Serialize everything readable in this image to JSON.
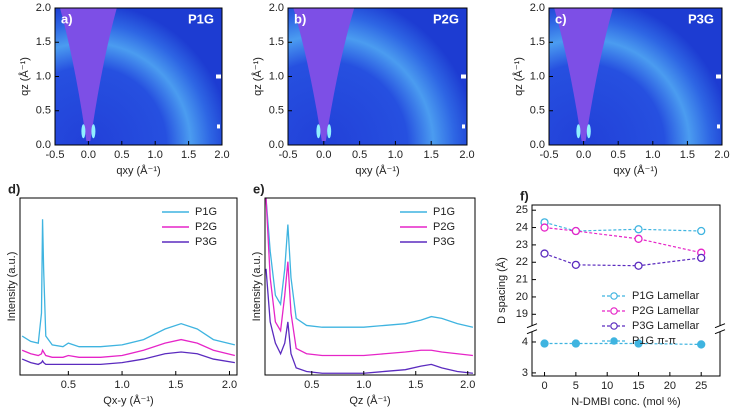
{
  "chart_data": [
    {
      "type": "image",
      "panel_label": "a)",
      "sample": "P1G",
      "xlabel": "qxy (Å⁻¹)",
      "ylabel": "qz (Å⁻¹)",
      "xlim": [
        -0.5,
        2.0
      ],
      "ylim": [
        0,
        2.0
      ],
      "xticks": [
        {
          "value": -0.5,
          "label": "-0.5"
        },
        {
          "value": 0,
          "label": "0.0"
        },
        {
          "value": 0.5,
          "label": "0.5"
        },
        {
          "value": 1,
          "label": "1.0"
        },
        {
          "value": 1.5,
          "label": "1.5"
        },
        {
          "value": 2,
          "label": "2.0"
        }
      ],
      "yticks": [
        {
          "value": 0,
          "label": "0.0"
        },
        {
          "value": 0.5,
          "label": "0.5"
        },
        {
          "value": 1,
          "label": "1.0"
        },
        {
          "value": 1.5,
          "label": "1.5"
        },
        {
          "value": 2,
          "label": "2.0"
        }
      ]
    },
    {
      "type": "image",
      "panel_label": "b)",
      "sample": "P2G",
      "xlabel": "qxy (Å⁻¹)",
      "ylabel": "qz (Å⁻¹)",
      "xlim": [
        -0.5,
        2.0
      ],
      "ylim": [
        0,
        2.0
      ],
      "xticks": [
        {
          "value": -0.5,
          "label": "-0.5"
        },
        {
          "value": 0,
          "label": "0.0"
        },
        {
          "value": 0.5,
          "label": "0.5"
        },
        {
          "value": 1,
          "label": "1.0"
        },
        {
          "value": 1.5,
          "label": "1.5"
        },
        {
          "value": 2,
          "label": "2.0"
        }
      ],
      "yticks": [
        {
          "value": 0,
          "label": "0.0"
        },
        {
          "value": 0.5,
          "label": "0.5"
        },
        {
          "value": 1,
          "label": "1.0"
        },
        {
          "value": 1.5,
          "label": "1.5"
        },
        {
          "value": 2,
          "label": "2.0"
        }
      ]
    },
    {
      "type": "image",
      "panel_label": "c)",
      "sample": "P3G",
      "xlabel": "qxy (Å⁻¹)",
      "ylabel": "qz (Å⁻¹)",
      "xlim": [
        -0.5,
        2.0
      ],
      "ylim": [
        0,
        2.0
      ],
      "xticks": [
        {
          "value": -0.5,
          "label": "-0.5"
        },
        {
          "value": 0,
          "label": "0.0"
        },
        {
          "value": 0.5,
          "label": "0.5"
        },
        {
          "value": 1,
          "label": "1.0"
        },
        {
          "value": 1.5,
          "label": "1.5"
        },
        {
          "value": 2,
          "label": "2.0"
        }
      ],
      "yticks": [
        {
          "value": 0,
          "label": "0.0"
        },
        {
          "value": 0.5,
          "label": "0.5"
        },
        {
          "value": 1,
          "label": "1.0"
        },
        {
          "value": 1.5,
          "label": "1.5"
        },
        {
          "value": 2,
          "label": "2.0"
        }
      ]
    },
    {
      "type": "line",
      "panel_label": "d)",
      "xlabel": "Qx-y (Å⁻¹)",
      "ylabel": "Intensity (a.u.)",
      "x": [
        0.07,
        0.15,
        0.22,
        0.25,
        0.26,
        0.27,
        0.29,
        0.35,
        0.45,
        0.5,
        0.6,
        0.8,
        1.0,
        1.2,
        1.4,
        1.55,
        1.7,
        1.85,
        2.05
      ],
      "series": [
        {
          "name": "P1G",
          "color": "#3fb4e0",
          "values": [
            22,
            19,
            18,
            35,
            88,
            60,
            22,
            17,
            16,
            18,
            16,
            16,
            17,
            20,
            26,
            29,
            26,
            20,
            17
          ]
        },
        {
          "name": "P2G",
          "color": "#e625c8",
          "values": [
            14,
            12,
            11,
            12,
            14,
            13,
            11,
            10,
            10,
            11,
            10,
            10,
            11,
            14,
            18,
            20,
            18,
            14,
            11
          ]
        },
        {
          "name": "P3G",
          "color": "#5b2bbf",
          "values": [
            9,
            7,
            6,
            7,
            8,
            7,
            6,
            6,
            6,
            6,
            6,
            6,
            7,
            9,
            12,
            13,
            12,
            9,
            7
          ]
        }
      ],
      "xlim": [
        0.05,
        2.07
      ],
      "ylim": [
        0,
        100
      ],
      "xticks": [
        {
          "value": 0.5,
          "label": "0.5"
        },
        {
          "value": 1,
          "label": "1.0"
        },
        {
          "value": 1.5,
          "label": "1.5"
        },
        {
          "value": 2,
          "label": "2.0"
        }
      ],
      "legend": "upper right"
    },
    {
      "type": "line",
      "panel_label": "e)",
      "xlabel": "Qz (Å⁻¹)",
      "ylabel": "Intensity (a.u.)",
      "x": [
        0.06,
        0.1,
        0.15,
        0.2,
        0.24,
        0.27,
        0.3,
        0.35,
        0.45,
        0.6,
        0.8,
        1.0,
        1.2,
        1.4,
        1.55,
        1.65,
        1.75,
        1.9,
        2.05
      ],
      "series": [
        {
          "name": "P1G",
          "color": "#3fb4e0",
          "values": [
            100,
            70,
            45,
            40,
            60,
            85,
            55,
            32,
            28,
            27,
            27,
            27,
            28,
            29,
            31,
            33,
            32,
            29,
            27
          ]
        },
        {
          "name": "P2G",
          "color": "#e625c8",
          "values": [
            100,
            55,
            30,
            25,
            45,
            64,
            35,
            15,
            12,
            11,
            11,
            11,
            12,
            13,
            14,
            14,
            13,
            12,
            11
          ]
        },
        {
          "name": "P3G",
          "color": "#5b2bbf",
          "values": [
            60,
            30,
            18,
            12,
            18,
            30,
            12,
            4,
            2,
            1,
            1,
            1,
            2,
            3,
            5,
            6,
            4,
            2,
            1
          ]
        }
      ],
      "xlim": [
        0.05,
        2.07
      ],
      "ylim": [
        0,
        100
      ],
      "xticks": [
        {
          "value": 0.5,
          "label": "0.5"
        },
        {
          "value": 1,
          "label": "1.0"
        },
        {
          "value": 1.5,
          "label": "1.5"
        },
        {
          "value": 2,
          "label": "2.0"
        }
      ],
      "legend": "upper right"
    },
    {
      "type": "scatter-line",
      "panel_label": "f)",
      "xlabel": "N-DMBI conc. (mol %)",
      "ylabel": "D spacing (Å)",
      "x": [
        0,
        5,
        15,
        25
      ],
      "series": [
        {
          "name": "P1G Lamellar",
          "color": "#3fb4e0",
          "marker": "open-circle",
          "values": [
            24.3,
            23.8,
            23.9,
            23.8
          ]
        },
        {
          "name": "P2G Lamellar",
          "color": "#e625c8",
          "marker": "open-circle",
          "values": [
            24.0,
            23.8,
            23.35,
            22.55
          ]
        },
        {
          "name": "P3G Lamellar",
          "color": "#5b2bbf",
          "marker": "open-circle",
          "values": [
            22.5,
            21.85,
            21.8,
            22.25
          ]
        },
        {
          "name": "P1G π-π",
          "color": "#3fb4e0",
          "marker": "circle",
          "values": [
            3.95,
            3.95,
            3.95,
            3.92
          ]
        }
      ],
      "xlim": [
        -2,
        28
      ],
      "ylim": [
        2.9,
        25.3
      ],
      "ybreak": [
        4.3,
        18.4
      ],
      "xticks": [
        0,
        5,
        10,
        15,
        20,
        25
      ],
      "yticks": [
        3,
        4,
        19,
        20,
        21,
        22,
        23,
        24,
        25
      ],
      "legend": "lower right"
    }
  ]
}
